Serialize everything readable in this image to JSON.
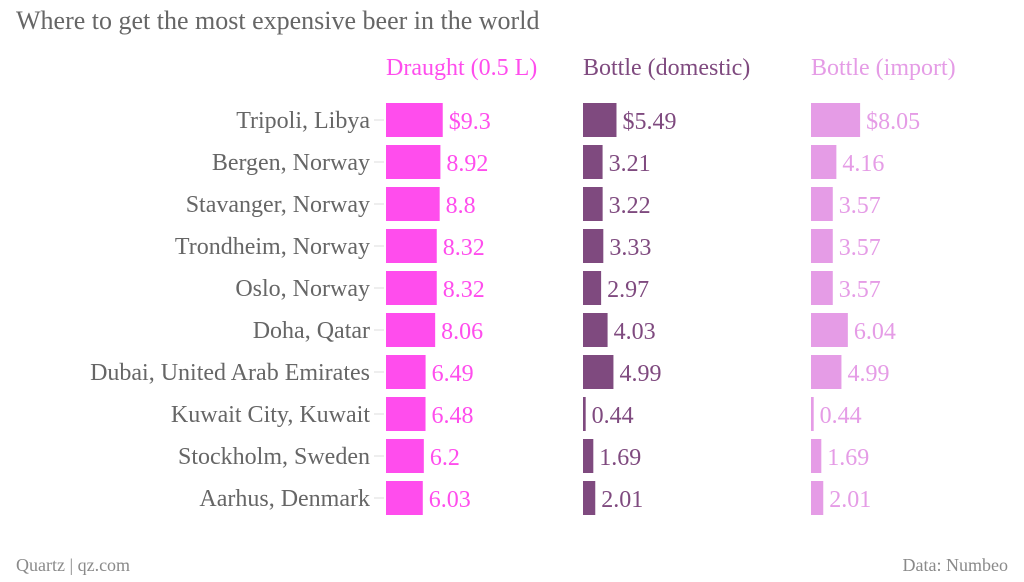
{
  "chart_data": {
    "type": "bar",
    "orientation": "horizontal",
    "title": "Where to get the most expensive beer in the world",
    "xlabel": "",
    "ylabel": "",
    "categories": [
      "Tripoli, Libya",
      "Bergen, Norway",
      "Stavanger, Norway",
      "Trondheim, Norway",
      "Oslo, Norway",
      "Doha, Qatar",
      "Dubai, United Arab Emirates",
      "Kuwait City, Kuwait",
      "Stockholm, Sweden",
      "Aarhus, Denmark"
    ],
    "series": [
      {
        "name": "Draught (0.5 L)",
        "color": "#ff4ded",
        "values": [
          9.3,
          8.92,
          8.8,
          8.32,
          8.32,
          8.06,
          6.49,
          6.48,
          6.2,
          6.03
        ],
        "labels": [
          "$9.3",
          "8.92",
          "8.8",
          "8.32",
          "8.32",
          "8.06",
          "6.49",
          "6.48",
          "6.2",
          "6.03"
        ]
      },
      {
        "name": "Bottle (domestic)",
        "color": "#7f4a7f",
        "values": [
          5.49,
          3.21,
          3.22,
          3.33,
          2.97,
          4.03,
          4.99,
          0.44,
          1.69,
          2.01
        ],
        "labels": [
          "$5.49",
          "3.21",
          "3.22",
          "3.33",
          "2.97",
          "4.03",
          "4.99",
          "0.44",
          "1.69",
          "2.01"
        ]
      },
      {
        "name": "Bottle (import)",
        "color": "#e59ce6",
        "values": [
          8.05,
          4.16,
          3.57,
          3.57,
          3.57,
          6.04,
          4.99,
          0.44,
          1.69,
          2.01
        ],
        "labels": [
          "$8.05",
          "4.16",
          "3.57",
          "3.57",
          "3.57",
          "6.04",
          "4.99",
          "0.44",
          "1.69",
          "2.01"
        ]
      }
    ],
    "legend_position": "top",
    "grid": false,
    "xlim": [
      0,
      10
    ]
  },
  "colors": {
    "text_gray": "#666666",
    "footer_gray": "#8a8a8a",
    "tick_gray": "#dddddd"
  },
  "footer": {
    "source_left": "Quartz | qz.com",
    "source_right": "Data: Numbeo"
  }
}
